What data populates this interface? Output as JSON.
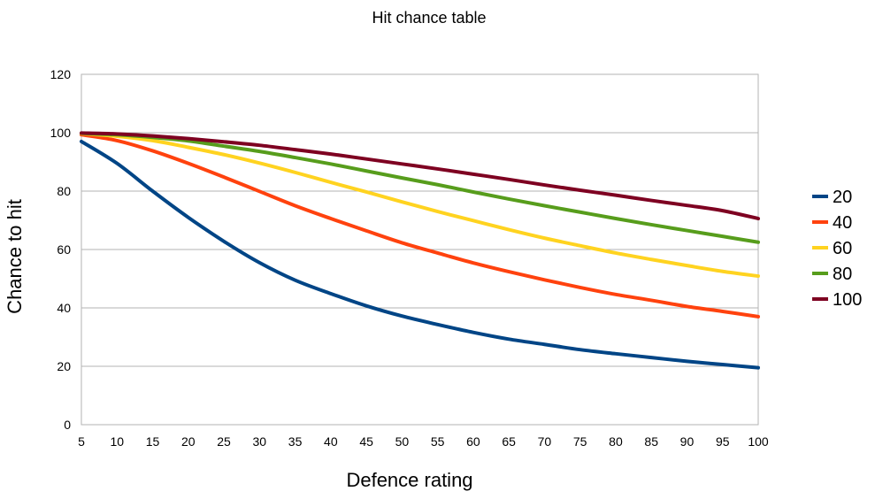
{
  "chart_data": {
    "type": "line",
    "title": "Hit chance table",
    "xlabel": "Defence rating",
    "ylabel": "Chance to hit",
    "xlim": [
      5,
      100
    ],
    "ylim": [
      0,
      120
    ],
    "grid": true,
    "legend_position": "right",
    "x_ticks": [
      5,
      10,
      15,
      20,
      25,
      30,
      35,
      40,
      45,
      50,
      55,
      60,
      65,
      70,
      75,
      80,
      85,
      90,
      95,
      100
    ],
    "y_ticks": [
      0,
      20,
      40,
      60,
      80,
      100,
      120
    ],
    "x": [
      5,
      10,
      15,
      20,
      25,
      30,
      35,
      40,
      45,
      50,
      55,
      60,
      65,
      70,
      75,
      80,
      85,
      90,
      95,
      100
    ],
    "series": [
      {
        "name": "20",
        "color": "#004586",
        "values": [
          97,
          89.5,
          80,
          71,
          62.8,
          55.5,
          49.5,
          44.9,
          40.7,
          37.2,
          34.3,
          31.6,
          29.3,
          27.5,
          25.7,
          24.3,
          23,
          21.7,
          20.6,
          19.5
        ]
      },
      {
        "name": "40",
        "color": "#ff420e",
        "values": [
          99.3,
          97.3,
          93.8,
          89.5,
          84.8,
          79.9,
          75,
          70.6,
          66.4,
          62.3,
          58.8,
          55.4,
          52.4,
          49.6,
          47,
          44.6,
          42.6,
          40.5,
          38.8,
          37
        ]
      },
      {
        "name": "60",
        "color": "#ffd320",
        "values": [
          99.7,
          98.8,
          97.3,
          95,
          92.5,
          89.6,
          86.4,
          83,
          79.7,
          76.3,
          73,
          69.9,
          66.8,
          63.9,
          61.3,
          58.8,
          56.6,
          54.5,
          52.5,
          50.9
        ]
      },
      {
        "name": "80",
        "color": "#579d1c",
        "values": [
          99.8,
          99.3,
          98.4,
          97.2,
          95.4,
          93.6,
          91.5,
          89.3,
          86.9,
          84.5,
          82.2,
          79.7,
          77.3,
          75,
          72.8,
          70.6,
          68.5,
          66.5,
          64.5,
          62.5
        ]
      },
      {
        "name": "100",
        "color": "#7e0021",
        "values": [
          99.9,
          99.6,
          98.9,
          98,
          96.9,
          95.7,
          94.2,
          92.7,
          91,
          89.3,
          87.6,
          85.8,
          84,
          82.1,
          80.3,
          78.6,
          76.8,
          75.1,
          73.3,
          70.6
        ]
      }
    ]
  }
}
